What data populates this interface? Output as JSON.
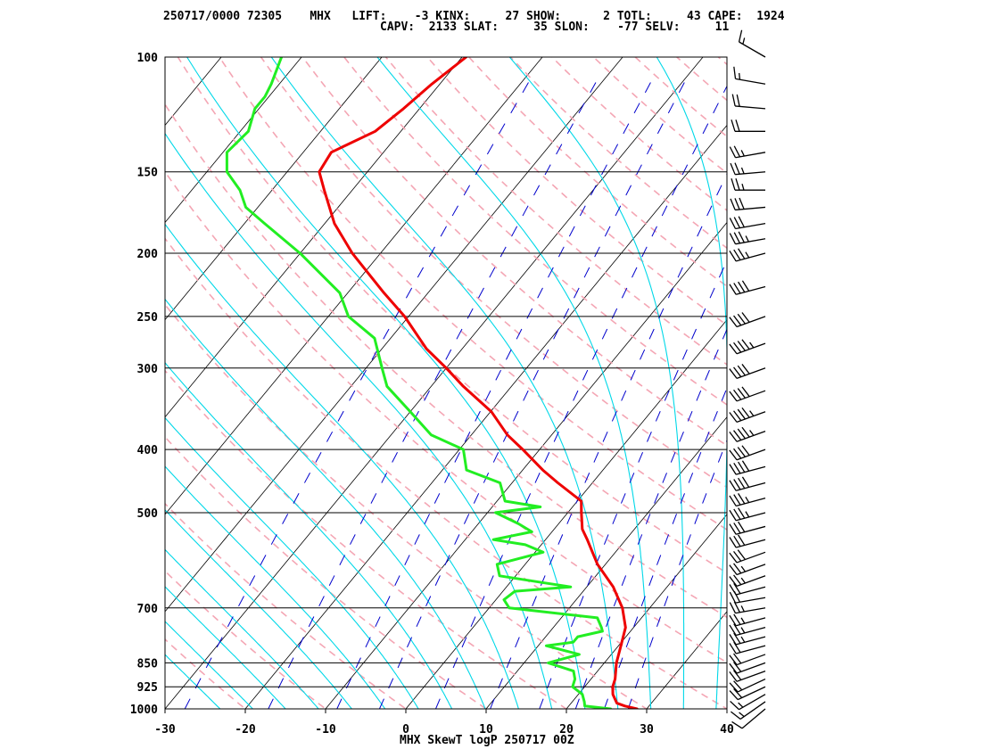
{
  "header": {
    "line1": "250717/0000 72305    MHX   LIFT:    -3 KINX:     27 SHOW:      2 TOTL:     43 CAPE:  1924",
    "line2": "CAPV:  2133 SLAT:     35 SLON:    -77 SELV:     11"
  },
  "footer": "MHX SkewT logP 250717 00Z",
  "colors": {
    "temperature": "#ee0000",
    "dewpoint": "#22ee22",
    "isotherm": "#000000",
    "isobar": "#000000",
    "dry_adiabat": "#f4a6b4",
    "moist_adiabat": "#f4a6b4",
    "mixing_ratio": "#0000cc",
    "saturated_adiabat_cyan": "#00d8e8",
    "wind_barb": "#000000"
  },
  "chart_data": {
    "type": "line",
    "title": "",
    "xlabel": "",
    "ylabel": "",
    "x_scale": "skew-T (temperature °C)",
    "y_scale": "log pressure (hPa)",
    "xlim": [
      -30,
      40
    ],
    "ylim": [
      1000,
      100
    ],
    "x_ticks": [
      "-30",
      "-20",
      "-10",
      "0",
      "10",
      "20",
      "30",
      "40"
    ],
    "y_ticks": [
      "100",
      "150",
      "200",
      "250",
      "300",
      "400",
      "500",
      "700",
      "850",
      "925",
      "1000"
    ],
    "grid": true,
    "series": [
      {
        "key": "temperature",
        "pressure": [
          1000,
          990,
          980,
          950,
          925,
          900,
          850,
          800,
          750,
          700,
          650,
          600,
          550,
          530,
          500,
          480,
          450,
          430,
          400,
          380,
          350,
          320,
          300,
          280,
          250,
          230,
          200,
          180,
          160,
          150,
          140,
          130,
          120,
          110,
          100
        ],
        "values": [
          28.8,
          27.0,
          25.7,
          24.3,
          23.5,
          23.0,
          21.5,
          20.3,
          19.0,
          16.6,
          13.3,
          9.0,
          5.2,
          3.5,
          1.7,
          0.5,
          -4.3,
          -7.5,
          -12.1,
          -15.5,
          -19.9,
          -26.0,
          -30.0,
          -34.5,
          -40.5,
          -45.5,
          -53.5,
          -58.8,
          -63.5,
          -66.0,
          -66.5,
          -63.2,
          -62.0,
          -61.0,
          -59.5
        ]
      },
      {
        "key": "dewpoint",
        "pressure": [
          1000,
          990,
          975,
          950,
          925,
          900,
          875,
          850,
          825,
          800,
          790,
          775,
          760,
          750,
          725,
          700,
          680,
          660,
          650,
          640,
          625,
          600,
          575,
          560,
          550,
          535,
          520,
          500,
          490,
          480,
          450,
          430,
          400,
          380,
          350,
          320,
          300,
          270,
          250,
          230,
          200,
          180,
          170,
          160,
          150,
          140,
          130,
          120,
          115,
          110,
          100
        ],
        "values": [
          25.5,
          22.0,
          21.5,
          20.5,
          18.5,
          18.0,
          17.0,
          13.0,
          16.0,
          11.0,
          14.0,
          14.0,
          16.5,
          16.0,
          14.5,
          2.5,
          1.0,
          1.5,
          8.0,
          4.0,
          -2.0,
          -3.5,
          1.0,
          -2.0,
          -6.5,
          -2.5,
          -5.0,
          -9.0,
          -4.0,
          -9.0,
          -11.5,
          -17.0,
          -19.5,
          -25.0,
          -30.0,
          -35.5,
          -38.0,
          -42.0,
          -47.5,
          -51.0,
          -60.0,
          -67.5,
          -71.5,
          -74.0,
          -77.5,
          -79.5,
          -79.0,
          -80.5,
          -80.5,
          -81.0,
          -82.5
        ]
      }
    ],
    "wind_barbs": {
      "pressure": [
        1000,
        975,
        950,
        925,
        900,
        875,
        850,
        825,
        800,
        775,
        750,
        725,
        700,
        675,
        650,
        625,
        600,
        575,
        550,
        525,
        500,
        475,
        450,
        425,
        400,
        375,
        350,
        325,
        300,
        275,
        250,
        225,
        200,
        190,
        180,
        170,
        160,
        150,
        140,
        130,
        120,
        110,
        100
      ],
      "direction_deg": [
        230,
        235,
        240,
        245,
        245,
        250,
        250,
        250,
        255,
        255,
        255,
        255,
        260,
        260,
        255,
        250,
        250,
        250,
        255,
        255,
        255,
        255,
        255,
        255,
        250,
        250,
        250,
        250,
        250,
        250,
        250,
        255,
        255,
        260,
        260,
        265,
        270,
        265,
        260,
        270,
        275,
        280,
        300
      ],
      "speed_kt": [
        10,
        15,
        15,
        20,
        20,
        20,
        20,
        20,
        20,
        25,
        25,
        25,
        25,
        20,
        20,
        25,
        25,
        30,
        30,
        30,
        35,
        35,
        40,
        40,
        40,
        45,
        45,
        40,
        40,
        45,
        40,
        40,
        35,
        35,
        30,
        30,
        25,
        25,
        25,
        20,
        20,
        15,
        15
      ]
    }
  }
}
